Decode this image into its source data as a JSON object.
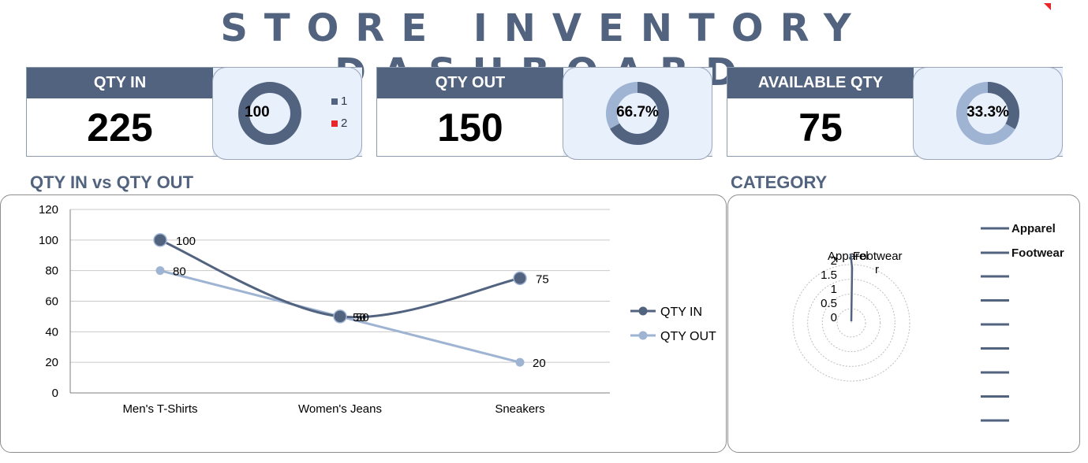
{
  "dashboard": {
    "title": "STORE INVENTORY DASHBOARD"
  },
  "colors": {
    "primary": "#52637f",
    "secondary": "#9fb4d2",
    "panel_bg": "#e8f0fc",
    "accent_red": "#e8262a"
  },
  "kpis": [
    {
      "id": "qty-in",
      "label": "QTY IN",
      "value": "225",
      "donut_text": "100",
      "percent": 100
    },
    {
      "id": "qty-out",
      "label": "QTY OUT",
      "value": "150",
      "donut_text": "66.7%",
      "percent": 66.7
    },
    {
      "id": "available-qty",
      "label": "AVAILABLE QTY",
      "value": "75",
      "donut_text": "33.3%",
      "percent": 33.3
    }
  ],
  "qty_in_legend": [
    {
      "label": "1",
      "color": "#52637f"
    },
    {
      "label": "2",
      "color": "#e8262a"
    }
  ],
  "sections": {
    "line_chart_title": "QTY IN vs QTY OUT",
    "category_title": "CATEGORY"
  },
  "chart_data": [
    {
      "type": "line",
      "title": "QTY IN vs QTY OUT",
      "categories": [
        "Men's T-Shirts",
        "Women's Jeans",
        "Sneakers"
      ],
      "series": [
        {
          "name": "QTY IN",
          "values": [
            100,
            50,
            75
          ],
          "color": "#52637f",
          "smooth": true
        },
        {
          "name": "QTY OUT",
          "values": [
            80,
            50,
            20
          ],
          "color": "#9fb4d2",
          "smooth": false
        }
      ],
      "ylim": [
        0,
        120
      ],
      "yticks": [
        0,
        20,
        40,
        60,
        80,
        100,
        120
      ],
      "grid": true,
      "legend": "right"
    },
    {
      "type": "radar",
      "title": "CATEGORY",
      "categories": [
        "Apparel",
        "Footwear"
      ],
      "axis_label_lines": [
        "Apparel",
        "Footwear",
        "r"
      ],
      "rlim": [
        0,
        2
      ],
      "rticks": [
        "0",
        "0.5",
        "1",
        "1.5",
        "2"
      ],
      "series_legend": [
        "Apparel",
        "Footwear"
      ],
      "empty_legend_entries": 7,
      "legend": "right"
    }
  ]
}
